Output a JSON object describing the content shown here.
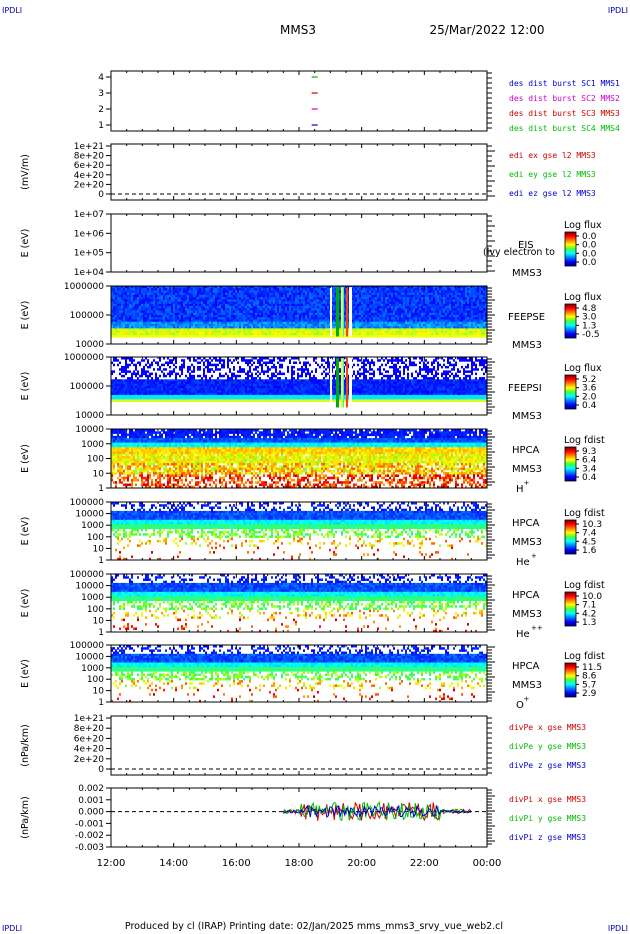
{
  "header": {
    "corner_label": "IPDLI",
    "title": "MMS3",
    "date": "25/Mar/2022 12:00"
  },
  "footer": {
    "text": "Produced by cl (IRAP)   Printing date: 02/Jan/2025   mms_mms3_srvy_vue_web2.cl"
  },
  "colors": {
    "blue": "#0000cc",
    "magenta": "#cc00cc",
    "red": "#cc0000",
    "green": "#00bb00"
  },
  "chart_data": {
    "type": "multi-panel-spectrogram",
    "x_ticks": [
      "12:00",
      "14:00",
      "16:00",
      "18:00",
      "20:00",
      "22:00",
      "00:00"
    ],
    "panels": [
      {
        "id": "burst",
        "ylabel": "",
        "yticks": [
          "4",
          "3",
          "2",
          "1"
        ],
        "legend": [
          "des dist burst SC1 MMS1",
          "des dist burst SC2 MMS2",
          "des dist burst SC3 MMS3",
          "des dist burst SC4 MMS4"
        ],
        "legend_colors": [
          "blue",
          "magenta",
          "red",
          "green"
        ],
        "burst_time": "18:30"
      },
      {
        "id": "edi",
        "ylabel": "(mV/m)",
        "yticks": [
          "1e+21",
          "8e+20",
          "6e+20",
          "4e+20",
          "2e+20",
          "0"
        ],
        "legend": [
          "edi ex gse l2 MMS3",
          "edi ey gse l2 MMS3",
          "edi ez gse l2 MMS3"
        ],
        "legend_colors": [
          "red",
          "green",
          "blue"
        ]
      },
      {
        "id": "eis",
        "ylabel": "E (eV)",
        "yticks": [
          "1e+07",
          "1e+06",
          "1e+05",
          "1e+04"
        ],
        "inst": [
          "EIS",
          "MMS3"
        ],
        "overlay": "(lvy electron to",
        "cbar_title": "Log flux",
        "cbar_ticks": [
          "0.0",
          "0.0",
          "0.0",
          "0.0"
        ]
      },
      {
        "id": "feepse",
        "ylabel": "E (eV)",
        "yticks": [
          "1000000",
          "100000",
          "10000"
        ],
        "inst": [
          "FEEPSE",
          "MMS3"
        ],
        "cbar_title": "Log flux",
        "cbar_ticks": [
          "4.8",
          "3.0",
          "1.3",
          "-0.5"
        ]
      },
      {
        "id": "feepsi",
        "ylabel": "E (eV)",
        "yticks": [
          "1000000",
          "100000",
          "10000"
        ],
        "inst": [
          "FEEPSI",
          "MMS3"
        ],
        "cbar_title": "Log flux",
        "cbar_ticks": [
          "5.2",
          "3.6",
          "2.0",
          "0.4"
        ]
      },
      {
        "id": "hpca_h",
        "ylabel": "E (eV)",
        "yticks": [
          "10000",
          "1000",
          "100",
          "10",
          "1"
        ],
        "inst": [
          "HPCA",
          "MMS3"
        ],
        "species": "H",
        "species_sup": "+",
        "cbar_title": "Log fdist",
        "cbar_ticks": [
          "9.3",
          "6.4",
          "3.4",
          "0.4"
        ]
      },
      {
        "id": "hpca_he",
        "ylabel": "E (eV)",
        "yticks": [
          "100000",
          "10000",
          "1000",
          "100",
          "10",
          "1"
        ],
        "inst": [
          "HPCA",
          "MMS3"
        ],
        "species": "He",
        "species_sup": "+",
        "cbar_title": "Log fdist",
        "cbar_ticks": [
          "10.3",
          "7.4",
          "4.5",
          "1.6"
        ]
      },
      {
        "id": "hpca_he2",
        "ylabel": "E (eV)",
        "yticks": [
          "100000",
          "10000",
          "1000",
          "100",
          "10",
          "1"
        ],
        "inst": [
          "HPCA",
          "MMS3"
        ],
        "species": "He",
        "species_sup": "++",
        "cbar_title": "Log fdist",
        "cbar_ticks": [
          "10.0",
          "7.1",
          "4.2",
          "1.3"
        ]
      },
      {
        "id": "hpca_o",
        "ylabel": "E (eV)",
        "yticks": [
          "100000",
          "10000",
          "1000",
          "100",
          "10",
          "1"
        ],
        "inst": [
          "HPCA",
          "MMS3"
        ],
        "species": "O",
        "species_sup": "+",
        "cbar_title": "Log fdist",
        "cbar_ticks": [
          "11.5",
          "8.6",
          "5.7",
          "2.9"
        ]
      },
      {
        "id": "divpe",
        "ylabel": "(nPa/km)",
        "yticks": [
          "1e+21",
          "8e+20",
          "6e+20",
          "4e+20",
          "2e+20",
          "0"
        ],
        "legend": [
          "divPe x gse MMS3",
          "divPe y gse MMS3",
          "divPe z gse MMS3"
        ],
        "legend_colors": [
          "red",
          "green",
          "blue"
        ]
      },
      {
        "id": "divpi",
        "ylabel": "(nPa/km)",
        "yticks": [
          "0.002",
          "0.001",
          "0.000",
          "-0.001",
          "-0.002",
          "-0.003"
        ],
        "legend": [
          "divPi x gse MMS3",
          "divPi y gse MMS3",
          "divPi z gse MMS3"
        ],
        "legend_colors": [
          "red",
          "green",
          "blue"
        ],
        "ylim": [
          -0.003,
          0.002
        ],
        "data_start": "17:30",
        "data_end": "23:30"
      }
    ]
  }
}
